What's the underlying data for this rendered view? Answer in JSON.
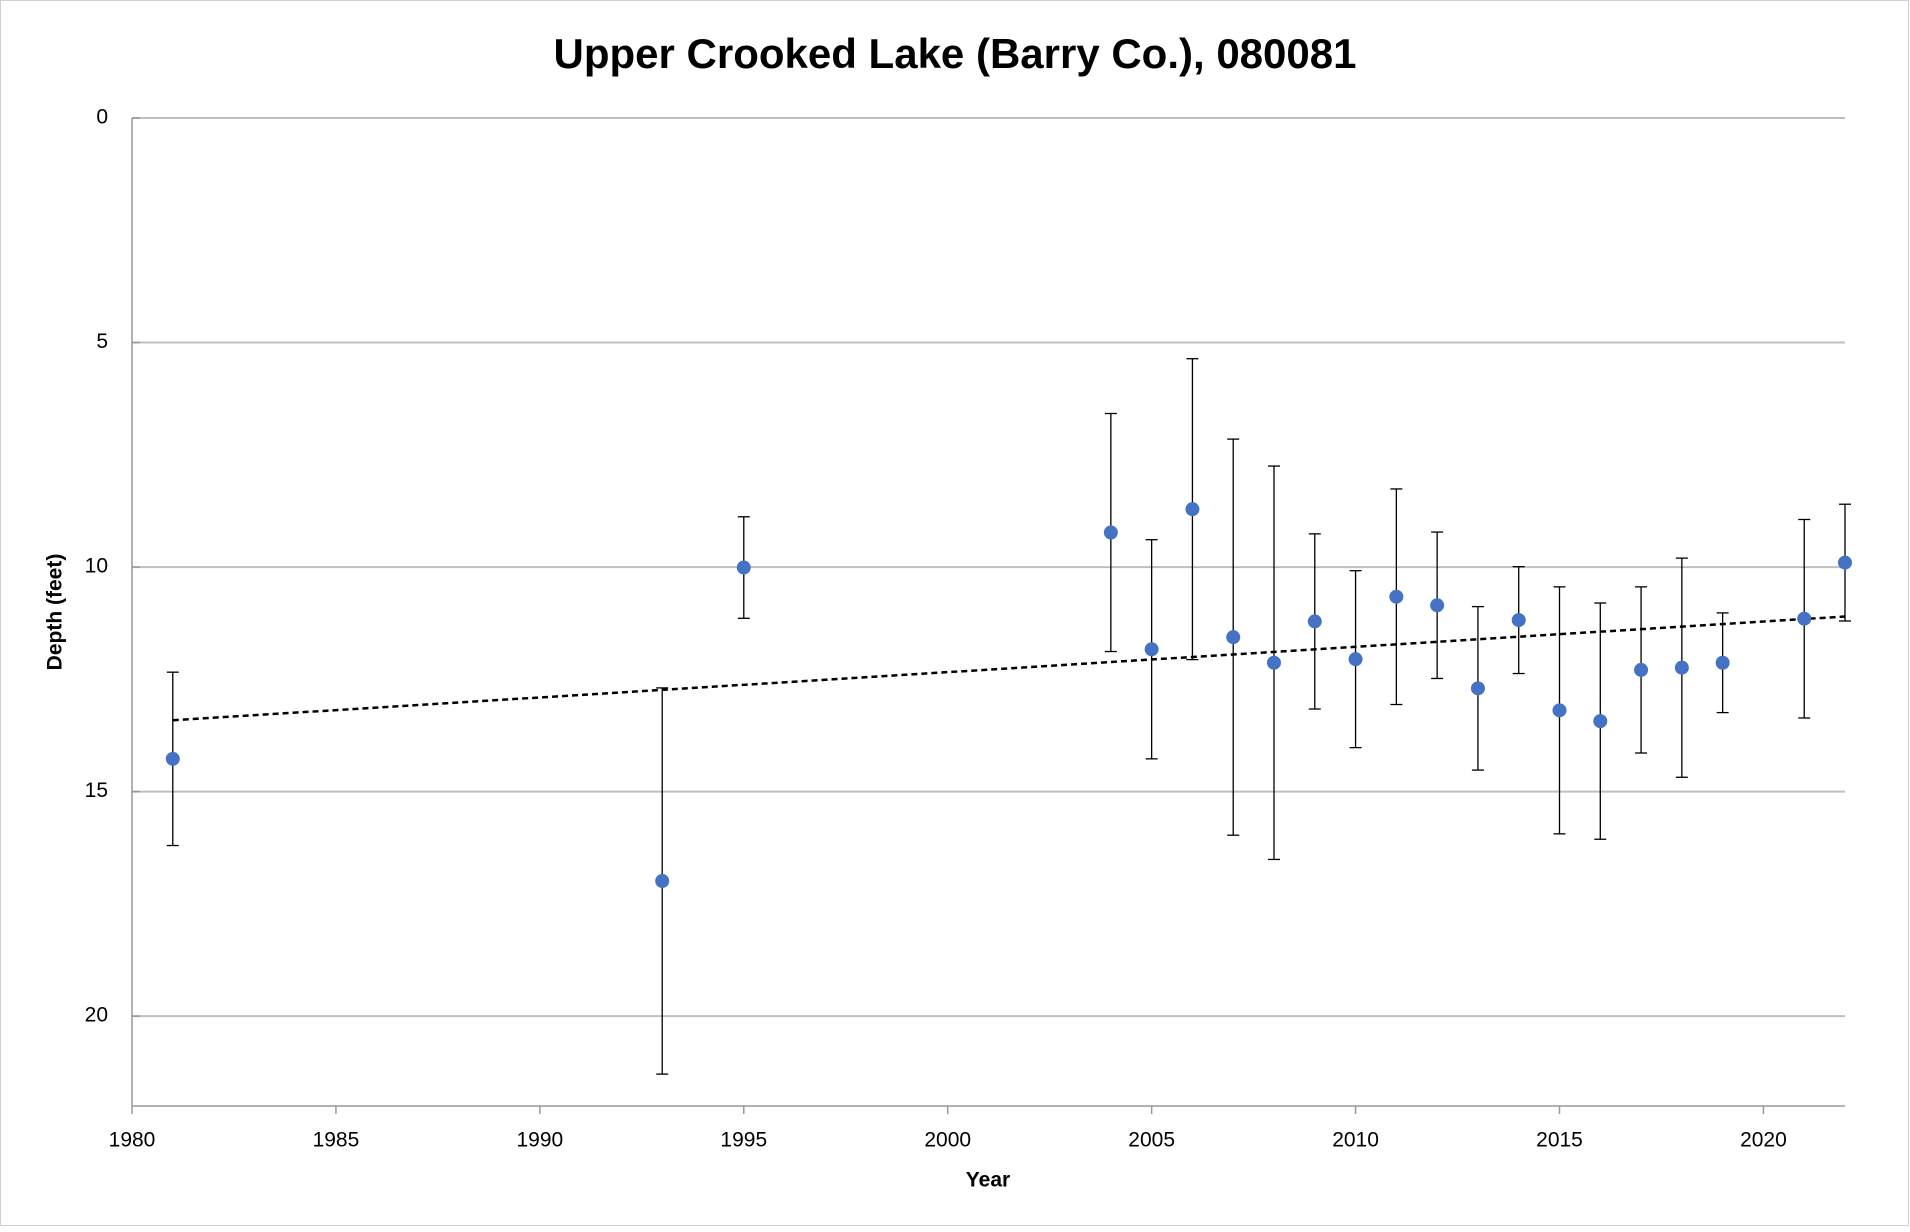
{
  "chart_data": {
    "type": "scatter",
    "title": "Upper Crooked Lake (Barry Co.), 080081",
    "x_label": "Year",
    "y_label": "Depth (feet)",
    "x": [
      1981,
      1993,
      1995,
      2004,
      2005,
      2006,
      2007,
      2008,
      2009,
      2010,
      2011,
      2012,
      2013,
      2014,
      2015,
      2016,
      2017,
      2018,
      2019,
      2021,
      2022
    ],
    "values": [
      14.27,
      16.99,
      10.01,
      9.23,
      11.83,
      8.71,
      11.56,
      12.13,
      11.21,
      12.05,
      10.66,
      10.85,
      12.7,
      11.18,
      13.19,
      13.43,
      12.29,
      12.24,
      12.13,
      11.15,
      9.9
    ],
    "errors": [
      1.93,
      4.3,
      1.13,
      2.65,
      2.44,
      3.35,
      4.41,
      4.38,
      1.95,
      1.97,
      2.4,
      1.63,
      1.82,
      1.19,
      2.75,
      2.63,
      1.85,
      2.44,
      1.11,
      2.21,
      1.3
    ],
    "color": "#4472c4",
    "trendline": {
      "x": [
        1981,
        2022
      ],
      "y": [
        13.41,
        11.1
      ],
      "color": "#000000"
    },
    "xlim": [
      1980,
      2022
    ],
    "xticks": [
      1980,
      1985,
      1990,
      1995,
      2000,
      2005,
      2010,
      2015,
      2020
    ],
    "ylim": [
      0,
      22
    ],
    "yticks": [
      0,
      5,
      10,
      15,
      20
    ],
    "y_inverted": true,
    "grid": true
  }
}
